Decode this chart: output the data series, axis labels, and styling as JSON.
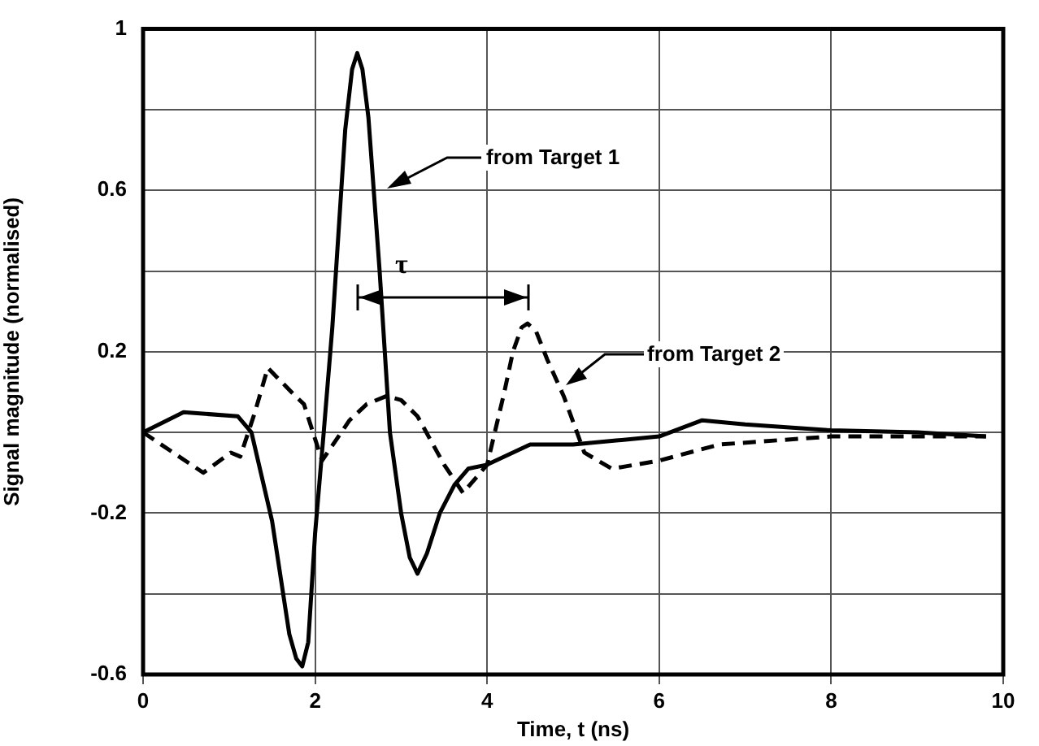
{
  "chart_data": {
    "type": "line",
    "xlabel": "Time, t (ns)",
    "ylabel": "Signal magnitude (normalised)",
    "xlim": [
      0,
      10
    ],
    "xticks": [
      0,
      2,
      4,
      6,
      8,
      10
    ],
    "ylim": [
      -0.6,
      1
    ],
    "yticks": [
      -0.6,
      {
        "value": -0.4,
        "label": null
      },
      -0.2,
      {
        "value": 0,
        "label": null
      },
      0.2,
      {
        "value": 0.4,
        "label": null
      },
      0.6,
      {
        "value": 0.8,
        "label": null
      },
      1
    ],
    "grid": true,
    "legend": false,
    "marker": "none",
    "series": [
      {
        "color": "#000000",
        "line_style": "solid",
        "x": [
          0,
          0.47,
          1.1,
          1.26,
          1.5,
          1.7,
          1.78,
          1.85,
          1.92,
          2.0,
          2.1,
          2.2,
          2.35,
          2.43,
          2.49,
          2.55,
          2.62,
          2.75,
          2.87,
          3.0,
          3.1,
          3.19,
          3.3,
          3.45,
          3.62,
          3.78,
          4.0,
          4.5,
          5.0,
          5.5,
          6.0,
          6.5,
          7.0,
          8.0,
          9.0,
          9.8
        ],
        "values": [
          0,
          0.05,
          0.04,
          0,
          -0.22,
          -0.5,
          -0.56,
          -0.58,
          -0.52,
          -0.25,
          0,
          0.26,
          0.75,
          0.9,
          0.94,
          0.9,
          0.78,
          0.4,
          0,
          -0.2,
          -0.31,
          -0.35,
          -0.3,
          -0.2,
          -0.13,
          -0.09,
          -0.08,
          -0.03,
          -0.03,
          -0.02,
          -0.01,
          0.03,
          0.02,
          0.005,
          0,
          -0.01
        ]
      },
      {
        "color": "#000000",
        "line_style": "dashed",
        "x": [
          0,
          0.7,
          1.02,
          1.13,
          1.3,
          1.45,
          1.77,
          1.87,
          2.08,
          2.4,
          2.6,
          2.83,
          3.0,
          3.19,
          3.5,
          3.72,
          4.0,
          4.2,
          4.3,
          4.4,
          4.47,
          4.57,
          4.7,
          4.89,
          5.13,
          5.45,
          6.0,
          6.7,
          8.0,
          9.0,
          9.8
        ],
        "values": [
          0,
          -0.1,
          -0.05,
          -0.06,
          0.05,
          0.16,
          0.09,
          0.07,
          -0.07,
          0.03,
          0.07,
          0.09,
          0.08,
          0.04,
          -0.08,
          -0.15,
          -0.08,
          0.1,
          0.2,
          0.26,
          0.27,
          0.25,
          0.18,
          0.09,
          -0.05,
          -0.09,
          -0.07,
          -0.03,
          -0.01,
          -0.01,
          -0.01
        ]
      }
    ],
    "annotations": [
      "from Target 1",
      "from Target 2",
      "τ"
    ]
  }
}
